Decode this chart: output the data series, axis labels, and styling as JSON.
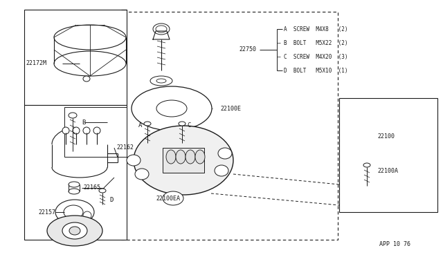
{
  "bg_color": "#ffffff",
  "line_color": "#1a1a1a",
  "fig_w": 6.4,
  "fig_h": 3.72,
  "dpi": 100,
  "app_code": "APP 10 76",
  "fastener_legend": [
    "A  SCREW  M4X8   (2)",
    "B  BOLT   M5X22  (2)",
    "C  SCREW  M4X20  (3)",
    "D  BOLT   M5X10  (1)"
  ]
}
